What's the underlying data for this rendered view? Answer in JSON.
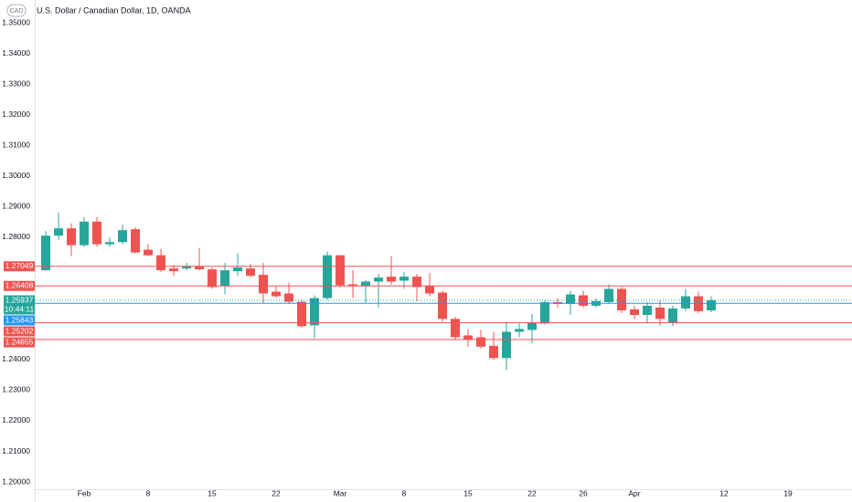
{
  "chart_data": {
    "type": "candlestick",
    "badge": "CAD",
    "title": "U.S. Dollar / Canadian Dollar, 1D, OANDA",
    "up_color": "#26a69a",
    "down_color": "#ef5350",
    "open": [
      1.2692,
      1.2805,
      1.2829,
      1.2774,
      1.2851,
      1.2777,
      1.2784,
      1.2826,
      1.2759,
      1.2741,
      1.2698,
      1.2698,
      1.2704,
      1.2695,
      1.264,
      1.2689,
      1.2698,
      1.2677,
      1.2622,
      1.2616,
      1.2589,
      1.2512,
      1.2601,
      1.2741,
      1.2646,
      1.264,
      1.2655,
      1.2671,
      1.2658,
      1.2671,
      1.264,
      1.2619,
      1.2533,
      1.2479,
      1.2473,
      1.2445,
      1.2405,
      1.2491,
      1.2497,
      1.2518,
      1.2588,
      1.2582,
      1.261,
      1.2576,
      1.2588,
      1.2631,
      1.2564,
      1.2546,
      1.257,
      1.2521,
      1.2567,
      1.2607,
      1.2561
    ],
    "high": [
      1.282,
      1.2881,
      1.2845,
      1.2866,
      1.2866,
      1.2799,
      1.2841,
      1.2832,
      1.2777,
      1.2762,
      1.271,
      1.2716,
      1.2765,
      1.2701,
      1.2716,
      1.2747,
      1.2713,
      1.2716,
      1.264,
      1.2652,
      1.2595,
      1.261,
      1.2753,
      1.2741,
      1.2692,
      1.2661,
      1.268,
      1.2738,
      1.2686,
      1.268,
      1.2683,
      1.2625,
      1.2539,
      1.25,
      1.2497,
      1.2491,
      1.2524,
      1.2518,
      1.2549,
      1.2594,
      1.26,
      1.2625,
      1.2625,
      1.26,
      1.2646,
      1.2637,
      1.2576,
      1.2588,
      1.2594,
      1.2576,
      1.2631,
      1.2622,
      1.2607
    ],
    "low": [
      1.269,
      1.279,
      1.2738,
      1.2768,
      1.2768,
      1.2768,
      1.2777,
      1.2747,
      1.2738,
      1.2686,
      1.2674,
      1.2692,
      1.2692,
      1.2631,
      1.2613,
      1.2674,
      1.2668,
      1.2585,
      1.2601,
      1.2582,
      1.2503,
      1.247,
      1.2595,
      1.2634,
      1.2601,
      1.2585,
      1.257,
      1.2646,
      1.2631,
      1.2591,
      1.2607,
      1.2524,
      1.2463,
      1.2442,
      1.2436,
      1.2399,
      1.2366,
      1.2473,
      1.2454,
      1.2515,
      1.257,
      1.2546,
      1.257,
      1.257,
      1.2582,
      1.2552,
      1.2533,
      1.2518,
      1.2512,
      1.2509,
      1.2558,
      1.2552,
      1.2555
    ],
    "close": [
      1.2805,
      1.2829,
      1.2774,
      1.2851,
      1.2777,
      1.2784,
      1.2823,
      1.275,
      1.2741,
      1.2692,
      1.2689,
      1.2704,
      1.2695,
      1.2637,
      1.2692,
      1.2701,
      1.2674,
      1.2616,
      1.2607,
      1.2589,
      1.2509,
      1.2601,
      1.2741,
      1.2643,
      1.264,
      1.2655,
      1.2668,
      1.2655,
      1.2671,
      1.2637,
      1.2616,
      1.2533,
      1.2473,
      1.2466,
      1.2442,
      1.2405,
      1.2491,
      1.25,
      1.2521,
      1.2588,
      1.2582,
      1.2613,
      1.2576,
      1.2591,
      1.2631,
      1.2561,
      1.2546,
      1.2576,
      1.2533,
      1.2567,
      1.2607,
      1.2558,
      1.25937
    ],
    "xlim": [
      -0.86,
      63
    ],
    "xticks": [
      {
        "value": 3,
        "label": "Feb"
      },
      {
        "value": 8,
        "label": "8"
      },
      {
        "value": 13,
        "label": "15"
      },
      {
        "value": 18,
        "label": "22"
      },
      {
        "value": 23,
        "label": "Mar"
      },
      {
        "value": 28,
        "label": "8"
      },
      {
        "value": 33,
        "label": "15"
      },
      {
        "value": 38,
        "label": "22"
      },
      {
        "value": 42,
        "label": "26"
      },
      {
        "value": 46,
        "label": "Apr"
      },
      {
        "value": 53,
        "label": "12"
      },
      {
        "value": 58,
        "label": "19"
      }
    ],
    "ylim": [
      1.20001,
      1.35396
    ],
    "yticks": [
      {
        "value": 1.35,
        "label": "1.35000"
      },
      {
        "value": 1.34,
        "label": "1.34000"
      },
      {
        "value": 1.33,
        "label": "1.33000"
      },
      {
        "value": 1.32,
        "label": "1.32000"
      },
      {
        "value": 1.31,
        "label": "1.31000"
      },
      {
        "value": 1.3,
        "label": "1.30000"
      },
      {
        "value": 1.29,
        "label": "1.29000"
      },
      {
        "value": 1.28,
        "label": "1.28000"
      },
      {
        "value": 1.24,
        "label": "1.24000"
      },
      {
        "value": 1.23,
        "label": "1.23000"
      },
      {
        "value": 1.22,
        "label": "1.22000"
      },
      {
        "value": 1.21,
        "label": "1.21000"
      },
      {
        "value": 1.2,
        "label": "1.20000"
      }
    ],
    "hlines": [
      {
        "value": 1.27049,
        "color": "#ef5350"
      },
      {
        "value": 1.26408,
        "color": "#ef5350"
      },
      {
        "value": 1.25843,
        "color": "#2196f3"
      },
      {
        "value": 1.25202,
        "color": "#ef5350"
      },
      {
        "value": 1.24655,
        "color": "#ef5350"
      }
    ],
    "last_price": {
      "value": 1.25937,
      "countdown": "10:44:11",
      "color": "#26a69a"
    }
  }
}
